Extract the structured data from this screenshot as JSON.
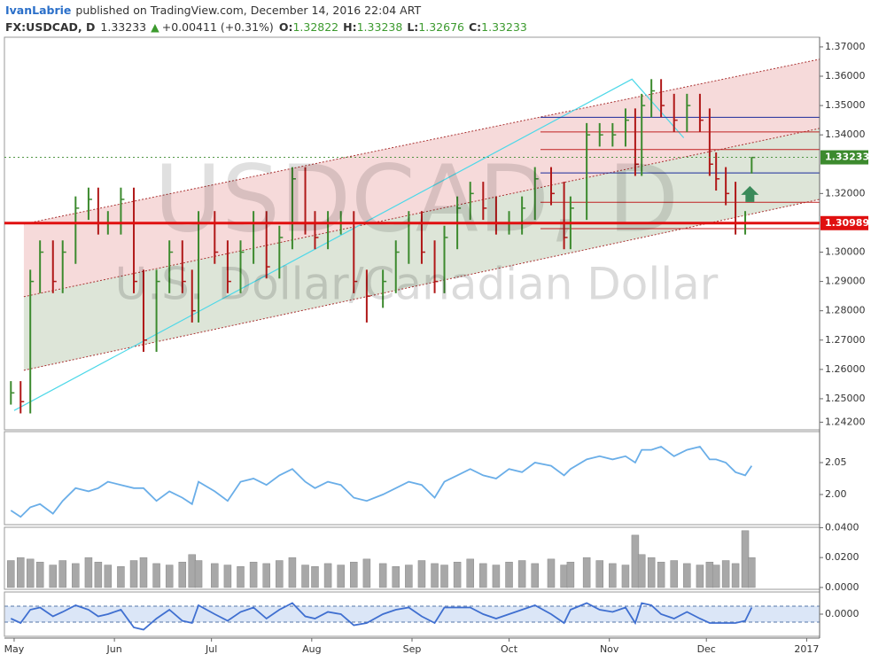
{
  "header": {
    "author": "IvanLabrie",
    "published": "published on TradingView.com, December 14, 2016 22:04 ART"
  },
  "chart_data": [
    {
      "type": "ohlc",
      "symbol": "FX:USDCAD, D",
      "last": 1.33233,
      "change_arrow": "▲",
      "change": "+0.00411 (+0.31%)",
      "ohlc_header": [
        {
          "label": "O:",
          "value": 1.32822
        },
        {
          "label": "H:",
          "value": 1.33238
        },
        {
          "label": "L:",
          "value": 1.32676
        },
        {
          "label": "C:",
          "value": 1.33233
        }
      ],
      "watermark_symbol": "USDCAD, D",
      "watermark_name": "U.S. Dollar/Canadian Dollar",
      "up_color": "#3c8a2e",
      "down_color": "#b01818",
      "xlim": [
        -3,
        249
      ],
      "xticks": [
        {
          "value": 0,
          "label": "May"
        },
        {
          "value": 31,
          "label": "Jun"
        },
        {
          "value": 61,
          "label": "Jul"
        },
        {
          "value": 92,
          "label": "Aug"
        },
        {
          "value": 123,
          "label": "Sep"
        },
        {
          "value": 153,
          "label": "Oct"
        },
        {
          "value": 184,
          "label": "Nov"
        },
        {
          "value": 214,
          "label": "Dec"
        },
        {
          "value": 245,
          "label": "2017"
        }
      ],
      "ylim": [
        1.2394,
        1.3733
      ],
      "yticks": [
        {
          "value": 1.37,
          "label": "1.37000"
        },
        {
          "value": 1.36,
          "label": "1.36000"
        },
        {
          "value": 1.35,
          "label": "1.35000"
        },
        {
          "value": 1.34,
          "label": "1.34000"
        },
        {
          "value": 1.32,
          "label": "1.32000"
        },
        {
          "value": 1.3,
          "label": "1.30000"
        },
        {
          "value": 1.29,
          "label": "1.29000"
        },
        {
          "value": 1.28,
          "label": "1.28000"
        },
        {
          "value": 1.27,
          "label": "1.27000"
        },
        {
          "value": 1.26,
          "label": "1.26000"
        },
        {
          "value": 1.25,
          "label": "1.25000"
        },
        {
          "value": 1.242,
          "label": "1.24200"
        }
      ],
      "x": [
        -1,
        2,
        5,
        8,
        12,
        15,
        19,
        23,
        26,
        29,
        33,
        37,
        40,
        44,
        48,
        52,
        55,
        57,
        62,
        66,
        70,
        74,
        78,
        82,
        86,
        90,
        93,
        97,
        101,
        105,
        109,
        114,
        118,
        122,
        126,
        130,
        133,
        137,
        141,
        145,
        149,
        153,
        157,
        161,
        166,
        170,
        172,
        177,
        181,
        185,
        189,
        192,
        194,
        197,
        200,
        204,
        208,
        212,
        215,
        217,
        220,
        223,
        226,
        228
      ],
      "high": [
        1.256,
        1.256,
        1.294,
        1.304,
        1.304,
        1.304,
        1.319,
        1.322,
        1.322,
        1.314,
        1.322,
        1.322,
        1.294,
        1.294,
        1.304,
        1.304,
        1.294,
        1.314,
        1.314,
        1.304,
        1.304,
        1.314,
        1.314,
        1.309,
        1.329,
        1.329,
        1.314,
        1.314,
        1.314,
        1.314,
        1.294,
        1.294,
        1.304,
        1.314,
        1.314,
        1.304,
        1.309,
        1.319,
        1.324,
        1.324,
        1.319,
        1.314,
        1.319,
        1.329,
        1.329,
        1.324,
        1.319,
        1.344,
        1.344,
        1.344,
        1.349,
        1.349,
        1.354,
        1.359,
        1.359,
        1.354,
        1.354,
        1.354,
        1.349,
        1.334,
        1.329,
        1.324,
        1.314,
        1.3324
      ],
      "low": [
        1.248,
        1.245,
        1.245,
        1.286,
        1.286,
        1.286,
        1.296,
        1.311,
        1.306,
        1.306,
        1.306,
        1.286,
        1.266,
        1.266,
        1.286,
        1.286,
        1.276,
        1.276,
        1.296,
        1.286,
        1.286,
        1.296,
        1.291,
        1.291,
        1.301,
        1.306,
        1.301,
        1.301,
        1.306,
        1.286,
        1.276,
        1.281,
        1.286,
        1.296,
        1.296,
        1.286,
        1.286,
        1.301,
        1.311,
        1.311,
        1.306,
        1.306,
        1.306,
        1.311,
        1.316,
        1.301,
        1.301,
        1.311,
        1.336,
        1.336,
        1.336,
        1.326,
        1.326,
        1.346,
        1.346,
        1.341,
        1.341,
        1.341,
        1.326,
        1.321,
        1.316,
        1.306,
        1.306,
        1.3268
      ],
      "close": [
        1.252,
        1.249,
        1.29,
        1.3,
        1.29,
        1.3,
        1.315,
        1.318,
        1.31,
        1.31,
        1.318,
        1.29,
        1.27,
        1.29,
        1.3,
        1.29,
        1.28,
        1.31,
        1.3,
        1.29,
        1.3,
        1.31,
        1.295,
        1.305,
        1.325,
        1.31,
        1.305,
        1.31,
        1.31,
        1.29,
        1.285,
        1.29,
        1.3,
        1.31,
        1.3,
        1.29,
        1.305,
        1.315,
        1.32,
        1.315,
        1.31,
        1.31,
        1.315,
        1.325,
        1.32,
        1.305,
        1.315,
        1.34,
        1.34,
        1.34,
        1.345,
        1.33,
        1.35,
        1.355,
        1.35,
        1.345,
        1.35,
        1.345,
        1.33,
        1.325,
        1.32,
        1.31,
        1.31,
        1.3323
      ],
      "channel": {
        "x": [
          3,
          249
        ],
        "upper": [
          1.3096,
          1.3658
        ],
        "middle": [
          1.2848,
          1.3422
        ],
        "lower": [
          1.2597,
          1.318
        ],
        "upper_fill": "#f6dada",
        "lower_fill": "#dde5d8",
        "color": "#a33"
      },
      "trendline": {
        "x": [
          0,
          191,
          207
        ],
        "y": [
          1.246,
          1.359,
          1.339
        ],
        "color": "#4dd8e8"
      },
      "levels": [
        {
          "value": 1.346,
          "color": "#1a2a9a"
        },
        {
          "value": 1.341,
          "color": "#c02020"
        },
        {
          "value": 1.335,
          "color": "#c02020"
        },
        {
          "value": 1.327,
          "color": "#1a2a9a"
        },
        {
          "value": 1.317,
          "color": "#c02020"
        },
        {
          "value": 1.308,
          "color": "#c02020"
        }
      ],
      "price_labels": [
        {
          "value": 1.33233,
          "color": "#3c8a2e"
        },
        {
          "value": 1.30989,
          "color": "#e01010"
        }
      ]
    },
    {
      "type": "line",
      "color": "#6aaee8",
      "ylim": [
        1.9528,
        2.0986
      ],
      "yticks": [
        2.05,
        {
          "value": 2,
          "label": "2.00"
        }
      ],
      "values": [
        1.975,
        1.965,
        1.98,
        1.985,
        1.97,
        1.99,
        2.01,
        2.005,
        2.01,
        2.02,
        2.015,
        2.01,
        2.01,
        1.99,
        2.005,
        1.995,
        1.985,
        2.02,
        2.005,
        1.99,
        2.02,
        2.025,
        2.015,
        2.03,
        2.04,
        2.02,
        2.01,
        2.02,
        2.015,
        1.995,
        1.99,
        2.0,
        2.01,
        2.02,
        2.015,
        1.995,
        2.02,
        2.03,
        2.04,
        2.03,
        2.025,
        2.04,
        2.035,
        2.05,
        2.045,
        2.03,
        2.04,
        2.055,
        2.06,
        2.055,
        2.06,
        2.05,
        2.07,
        2.07,
        2.075,
        2.06,
        2.07,
        2.075,
        2.055,
        2.055,
        2.05,
        2.035,
        2.03,
        2.045
      ]
    },
    {
      "type": "bar",
      "color": "#a8a8a8",
      "ylim": [
        -0.00125,
        0.04025
      ],
      "yticks": [
        {
          "value": 0.04,
          "label": "0.0400"
        },
        {
          "value": 0.02,
          "label": "0.0200"
        },
        {
          "value": 0,
          "label": "0.0000"
        }
      ],
      "values": [
        0.018,
        0.02,
        0.019,
        0.017,
        0.015,
        0.018,
        0.016,
        0.02,
        0.017,
        0.015,
        0.014,
        0.018,
        0.02,
        0.016,
        0.015,
        0.017,
        0.022,
        0.018,
        0.016,
        0.015,
        0.014,
        0.017,
        0.016,
        0.018,
        0.02,
        0.015,
        0.014,
        0.016,
        0.015,
        0.017,
        0.019,
        0.016,
        0.014,
        0.015,
        0.018,
        0.016,
        0.015,
        0.017,
        0.019,
        0.016,
        0.015,
        0.017,
        0.018,
        0.016,
        0.019,
        0.015,
        0.017,
        0.02,
        0.018,
        0.016,
        0.015,
        0.035,
        0.022,
        0.02,
        0.017,
        0.018,
        0.016,
        0.015,
        0.017,
        0.015,
        0.018,
        0.016,
        0.038,
        0.02
      ]
    },
    {
      "type": "line",
      "color": "#3f6fd0",
      "ylim": [
        -0.01,
        0.01
      ],
      "yticks": [
        {
          "value": 0,
          "label": "0.0000"
        }
      ],
      "band": [
        -0.0036,
        0.0036
      ],
      "band_fill": "#dbe6f7",
      "values": [
        -0.002,
        -0.004,
        0.002,
        0.003,
        -0.001,
        0.001,
        0.004,
        0.002,
        -0.001,
        0,
        0.002,
        -0.006,
        -0.007,
        -0.002,
        0.002,
        -0.003,
        -0.004,
        0.004,
        0,
        -0.003,
        0.001,
        0.003,
        -0.002,
        0.002,
        0.005,
        -0.001,
        -0.002,
        0.001,
        0,
        -0.005,
        -0.004,
        0,
        0.002,
        0.003,
        -0.001,
        -0.004,
        0.003,
        0.003,
        0.003,
        0,
        -0.002,
        0,
        0.002,
        0.004,
        0,
        -0.004,
        0.002,
        0.005,
        0.002,
        0.001,
        0.003,
        -0.004,
        0.005,
        0.004,
        0,
        -0.002,
        0.001,
        -0.002,
        -0.004,
        -0.004,
        -0.004,
        -0.004,
        -0.003,
        0.003
      ]
    }
  ]
}
